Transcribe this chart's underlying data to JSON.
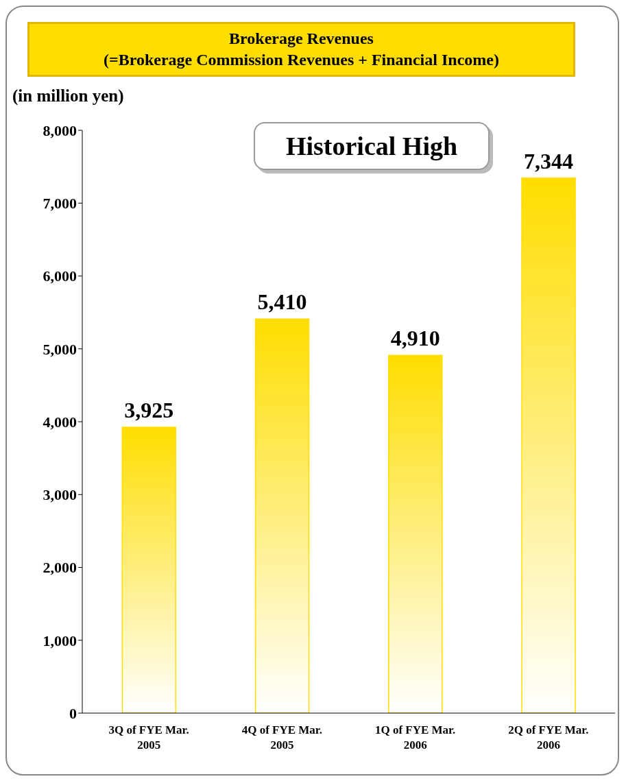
{
  "chart_data": {
    "type": "bar",
    "title": "Brokerage Revenues",
    "subtitle": "(=Brokerage Commission Revenues + Financial Income)",
    "ylabel": "(in million yen)",
    "categories": [
      "3Q of FYE Mar.\n2005",
      "4Q of FYE Mar.\n2005",
      "1Q of FYE Mar.\n2006",
      "2Q of FYE Mar.\n2006"
    ],
    "values": [
      3925,
      5410,
      4910,
      7344
    ],
    "color": "#ffdd00",
    "value_labels": [
      "3,925",
      "5,410",
      "4,910",
      "7,344"
    ],
    "ylim": [
      0,
      8000
    ],
    "yticks": [
      0,
      {
        "value": 1000,
        "label": "1,000"
      },
      {
        "value": 2000,
        "label": "2,000"
      },
      {
        "value": 3000,
        "label": "3,000"
      },
      {
        "value": 4000,
        "label": "4,000"
      },
      {
        "value": 5000,
        "label": "5,000"
      },
      {
        "value": 6000,
        "label": "6,000"
      },
      {
        "value": 7000,
        "label": "7,000"
      },
      {
        "value": 8000,
        "label": "8,000"
      }
    ],
    "annotations": [
      "Historical High"
    ]
  }
}
